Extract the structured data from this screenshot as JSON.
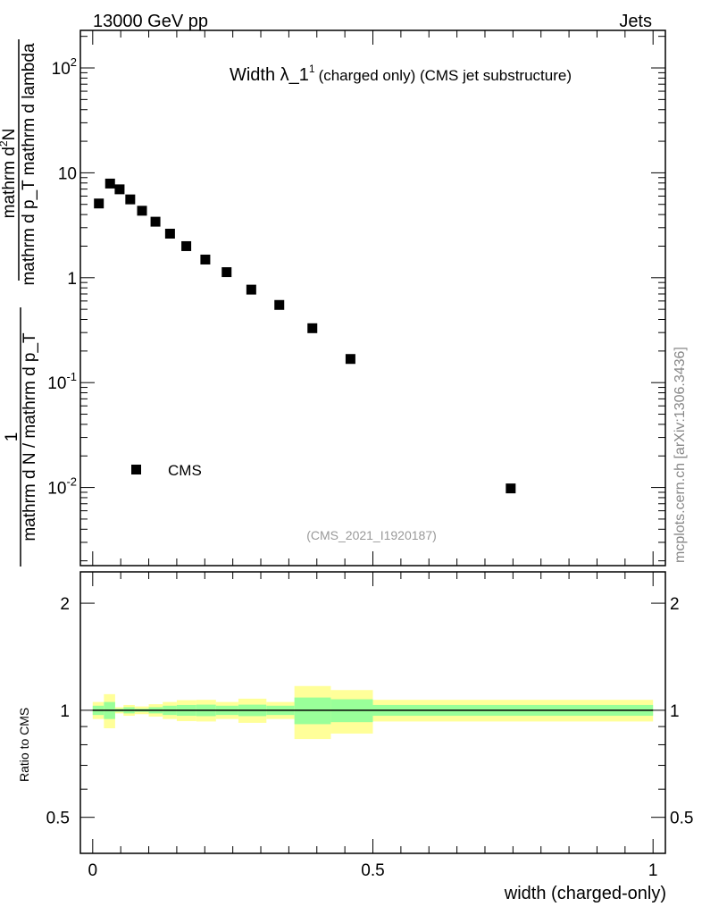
{
  "header": {
    "left": "13000 GeV pp",
    "right": "Jets"
  },
  "side_label": "mcplots.cern.ch [arXiv:1306.3436]",
  "analysis_id": "(CMS_2021_I1920187)",
  "chart_data": [
    {
      "type": "scatter",
      "title": "Width λ_1",
      "title_sup": "1",
      "title_suffix": "(charged only) (CMS jet substructure)",
      "ylabel_num_top": "mathrm d",
      "ylabel_num_sup": "2",
      "ylabel_num_n": "N",
      "ylabel_den": "mathrm d p_T mathrm d lambda",
      "ylabel_one": "1",
      "ylabel_one_den": "mathrm d N / mathrm d p_T",
      "yscale": "log",
      "xlim": [
        -0.022,
        1.022
      ],
      "ylim": [
        0.0018,
        228
      ],
      "ytick_labels": [
        {
          "v": 100,
          "base": "10",
          "exp": "2"
        },
        {
          "v": 10,
          "base": "10",
          "exp": ""
        },
        {
          "v": 1,
          "base": "1",
          "exp": ""
        },
        {
          "v": 0.1,
          "base": "10",
          "exp": "-1"
        },
        {
          "v": 0.01,
          "base": "10",
          "exp": "-2"
        }
      ],
      "legend": {
        "placement": "bottom-left",
        "entries": [
          "CMS"
        ]
      },
      "series": [
        {
          "name": "CMS",
          "color": "#000000",
          "x": [
            0.011,
            0.031,
            0.048,
            0.067,
            0.088,
            0.112,
            0.138,
            0.167,
            0.201,
            0.239,
            0.283,
            0.333,
            0.392,
            0.46,
            0.746
          ],
          "y": [
            5.1,
            7.9,
            6.96,
            5.58,
            4.35,
            3.42,
            2.63,
            2.0,
            1.49,
            1.13,
            0.77,
            0.55,
            0.33,
            0.168,
            0.0098
          ]
        }
      ]
    },
    {
      "type": "area",
      "ylabel": "Ratio to CMS",
      "xlabel": "width (charged-only)",
      "yscale": "log",
      "xlim": [
        -0.022,
        1.022
      ],
      "ylim": [
        0.396,
        2.45
      ],
      "yticks": [
        0.5,
        1,
        2
      ],
      "ytick_labels": [
        "0.5",
        "1",
        "2"
      ],
      "xticks": [
        0,
        0.5,
        1
      ],
      "xtick_labels": [
        "0",
        "0.5",
        "1"
      ],
      "bin_edges": [
        0,
        0.02,
        0.04,
        0.055,
        0.075,
        0.1,
        0.125,
        0.15,
        0.185,
        0.22,
        0.26,
        0.31,
        0.36,
        0.425,
        0.5,
        1.0
      ],
      "band_total_rel": [
        0.055,
        0.11,
        0.02,
        0.035,
        0.025,
        0.04,
        0.055,
        0.068,
        0.07,
        0.055,
        0.078,
        0.055,
        0.17,
        0.14,
        0.07
      ],
      "band_stat_rel": [
        0.03,
        0.055,
        0.01,
        0.02,
        0.01,
        0.02,
        0.03,
        0.035,
        0.037,
        0.03,
        0.037,
        0.03,
        0.086,
        0.074,
        0.035
      ],
      "colors": {
        "total": "#ffff99",
        "stat": "#99ff99",
        "line": "#000000"
      }
    }
  ]
}
